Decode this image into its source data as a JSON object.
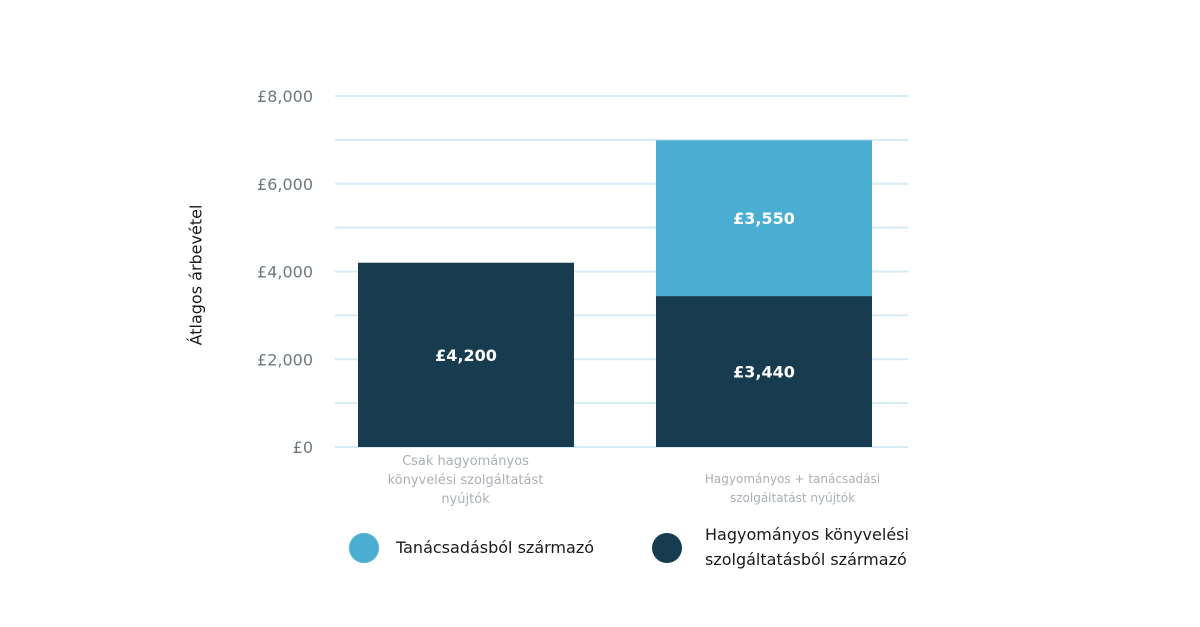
{
  "chart_data": {
    "type": "bar",
    "stacked": true,
    "ylabel": "Átlagos árbevétel",
    "ylim": [
      0,
      8000
    ],
    "yticks": [
      0,
      2000,
      4000,
      6000,
      8000
    ],
    "ytick_labels": [
      "£0",
      "£2,000",
      "£4,000",
      "£6,000",
      "£8,000"
    ],
    "categories": [
      "Csak hagyományos könyvelési szolgáltatást nyújtók",
      "Hagyományos + tanácsadási szolgáltatást nyújtók"
    ],
    "series": [
      {
        "name": "Hagyományos könyvelési szolgáltatásból származó",
        "color": "#173c50",
        "values": [
          4200,
          3440
        ],
        "value_labels": [
          "£4,200",
          "£3,440"
        ]
      },
      {
        "name": "Tanácsadásból származó",
        "color": "#4aaed3",
        "values": [
          0,
          3550
        ],
        "value_labels": [
          "",
          "£3,550"
        ]
      }
    ],
    "legend": [
      {
        "label": "Tanácsadásból származó",
        "color": "#4aaed3"
      },
      {
        "label": "Hagyományos könyvelési szolgáltatásból származó",
        "color": "#173c50"
      }
    ],
    "grid": true,
    "grid_color": "#d6ebf4"
  }
}
